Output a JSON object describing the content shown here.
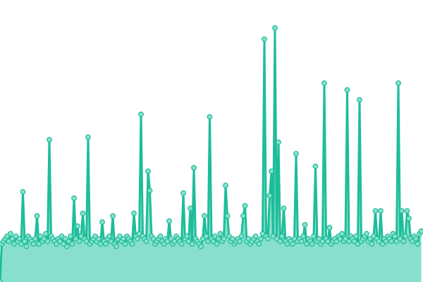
{
  "chart_data": {
    "type": "area",
    "title": "",
    "xlabel": "",
    "ylabel": "",
    "ylim": [
      0,
      111
    ],
    "grid": false,
    "legend": "none",
    "colors": {
      "line": "#1dbd9a",
      "fill": "#88e0cc",
      "marker_fill": "#88e0cc",
      "marker_stroke": "#1dbd9a"
    },
    "series": [
      {
        "values": [
          0,
          15,
          16,
          17,
          18,
          16,
          19,
          17,
          15,
          18,
          16,
          17,
          15,
          35.5,
          16,
          14,
          18,
          17,
          16,
          15,
          17,
          26,
          15,
          18,
          16,
          17,
          19,
          16,
          56,
          18,
          17,
          16,
          15,
          17,
          16,
          18,
          15,
          17,
          14,
          16,
          18,
          15,
          33,
          17,
          22,
          16,
          18,
          27,
          17,
          16,
          57,
          15,
          16,
          17,
          18,
          16,
          17,
          15,
          23.6,
          16,
          15,
          17,
          18,
          16,
          26,
          15,
          14,
          17,
          18,
          16,
          17,
          15,
          18,
          17,
          16,
          15,
          27,
          18,
          17,
          19,
          66,
          18,
          17,
          16,
          43.6,
          36,
          18,
          17,
          15,
          16,
          17,
          18,
          16,
          15,
          17,
          16,
          24,
          17,
          15,
          16,
          18,
          17,
          16,
          15,
          35,
          17,
          18,
          16,
          29,
          15,
          45,
          17,
          16,
          15,
          14,
          17,
          26,
          18,
          16,
          65,
          17,
          16,
          18,
          15,
          17,
          19,
          16,
          17,
          38,
          26,
          18,
          16,
          17,
          15,
          16,
          17,
          16,
          18,
          26,
          30,
          16,
          17,
          15,
          16,
          17,
          18,
          16,
          15,
          17,
          19,
          95.6,
          18,
          17,
          34,
          43.6,
          18,
          100,
          17,
          55,
          16,
          18,
          29,
          16,
          15,
          17,
          16,
          15,
          17,
          50.5,
          16,
          17,
          16,
          18,
          22.5,
          15,
          17,
          16,
          15,
          18,
          45.5,
          16,
          17,
          15,
          16,
          78.3,
          17,
          16,
          21.4,
          15,
          16,
          17,
          16,
          18,
          17,
          19,
          16,
          17,
          75.6,
          16,
          18,
          17,
          16,
          18,
          15,
          71.7,
          16,
          17,
          18,
          19,
          16,
          17,
          15,
          18,
          28,
          17,
          16,
          28,
          15,
          17,
          16,
          18,
          17,
          16,
          19,
          18,
          16,
          78.3,
          17,
          28,
          16,
          18,
          28,
          25,
          17,
          16,
          18,
          17,
          15,
          19,
          20
        ]
      }
    ]
  }
}
